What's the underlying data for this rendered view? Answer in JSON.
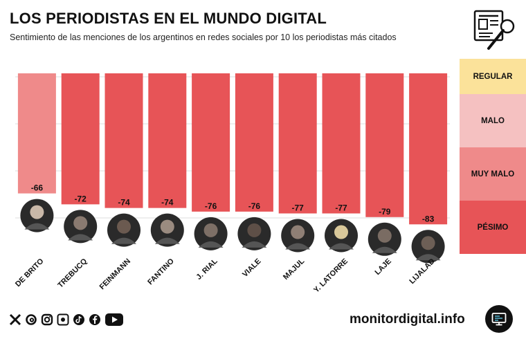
{
  "header": {
    "title": "LOS PERIODISTAS EN EL MUNDO DIGITAL",
    "subtitle": "Sentimiento de las menciones de los argentinos en redes sociales por 10 los periodistas más citados"
  },
  "scale": [
    {
      "label": "REGULAR",
      "color": "#FBE29A"
    },
    {
      "label": "MALO",
      "color": "#F5C1C1"
    },
    {
      "label": "MUY MALO",
      "color": "#EF8A8A"
    },
    {
      "label": "PÉSIMO",
      "color": "#E75457"
    }
  ],
  "colors": {
    "bar_main": "#E75457",
    "bar_highlight": "#EF8A8A",
    "text": "#111111"
  },
  "icons": [
    "x-icon",
    "threads-icon",
    "instagram-icon",
    "facebook-page-icon",
    "tiktok-icon",
    "facebook-icon",
    "youtube-icon"
  ],
  "footer": {
    "brand": "monitordigital.info"
  },
  "chart_data": {
    "type": "bar",
    "categories": [
      "DE BRITO",
      "TREBUCQ",
      "FEINMANN",
      "FANTINO",
      "J. RIAL",
      "VIALE",
      "MAJUL",
      "Y. LATORRE",
      "LAJE",
      "LIJALAD"
    ],
    "values": [
      -66,
      -72,
      -74,
      -74,
      -76,
      -76,
      -77,
      -77,
      -79,
      -83
    ],
    "data_labels": [
      "-66",
      "-72",
      "-74",
      "-74",
      "-76",
      "-76",
      "-77",
      "-77",
      "-79",
      "-83"
    ],
    "highlight_index": 0,
    "ylim": [
      -100,
      0
    ],
    "grid": true,
    "legend": "right",
    "title": "",
    "xlabel": "",
    "ylabel": ""
  }
}
